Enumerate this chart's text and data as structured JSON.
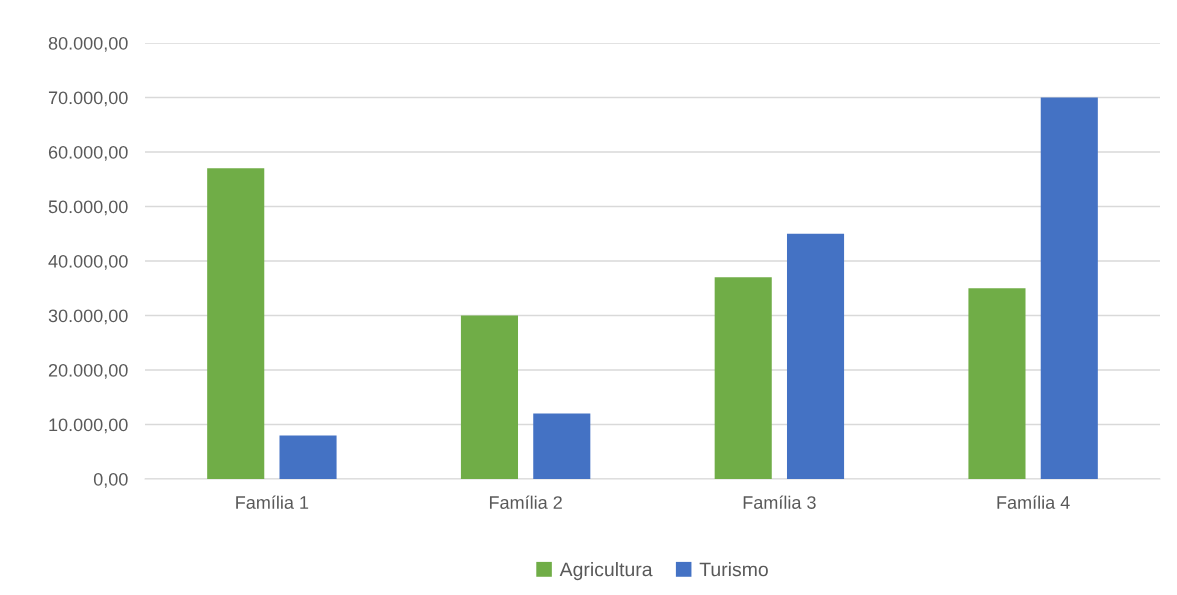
{
  "chart_data": {
    "type": "bar",
    "categories": [
      "Família 1",
      "Família 2",
      "Família 3",
      "Família 4"
    ],
    "series": [
      {
        "name": "Agricultura",
        "color": "#70ad47",
        "values": [
          57000,
          30000,
          37000,
          35000
        ]
      },
      {
        "name": "Turismo",
        "color": "#4472c4",
        "values": [
          8000,
          12000,
          45000,
          70000
        ]
      }
    ],
    "ylim": [
      0,
      80000
    ],
    "yticks": [
      {
        "value": 0,
        "label": "0,00"
      },
      {
        "value": 10000,
        "label": "10.000,00"
      },
      {
        "value": 20000,
        "label": "20.000,00"
      },
      {
        "value": 30000,
        "label": "30.000,00"
      },
      {
        "value": 40000,
        "label": "40.000,00"
      },
      {
        "value": 50000,
        "label": "50.000,00"
      },
      {
        "value": 60000,
        "label": "60.000,00"
      },
      {
        "value": 70000,
        "label": "70.000,00"
      },
      {
        "value": 80000,
        "label": "80.000,00"
      }
    ],
    "grid": "y",
    "legend": "bottom"
  }
}
